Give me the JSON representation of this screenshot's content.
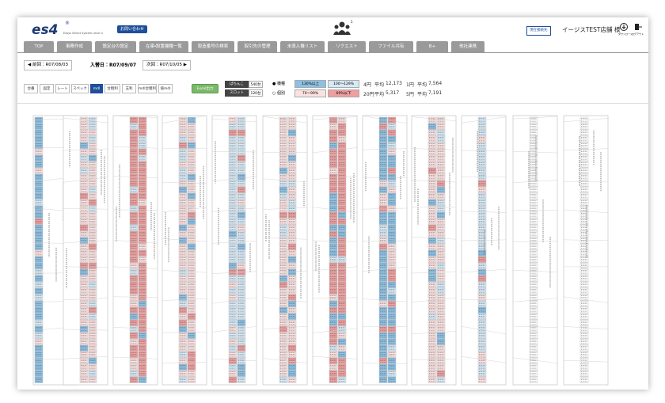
{
  "header": {
    "logo": "es4",
    "logo_mark": "®",
    "logo_sub": "Easys Select System Level 4",
    "contact": "お問い合わせ",
    "badge": "1",
    "current_button": "現在接続先",
    "store": "イージスTEST店舗 様",
    "icon_labels": [
      "ダウンロード",
      "ログアウト"
    ]
  },
  "tabs": [
    "TOP",
    "事務作成",
    "設定台の設定",
    "在庫・設置機種一覧",
    "製造番号の検索",
    "取引先の管理",
    "未導入機リスト",
    "リクエスト",
    "ファイル共有",
    "B+",
    "他社連携"
  ],
  "nav": {
    "prev": "◀ 前回：R07/08/03",
    "current": "入替日：R07/09/07",
    "next": "次回：R07/10/05 ▶"
  },
  "toolbar": {
    "buttons": [
      "台番",
      "固定",
      "レート",
      "スペック",
      "mdl",
      "台粗利",
      "玉利",
      "mdl台粗利",
      "値mdl"
    ],
    "excel": "Excel出力"
  },
  "counts": [
    {
      "label": "ぱちんこ",
      "value": "540台"
    },
    {
      "label": "スロット",
      "value": "120台"
    }
  ],
  "radios": [
    "● 機種",
    "○ 個別"
  ],
  "legend": [
    "130%以上",
    "100～129%",
    "70～99%",
    "69%以下"
  ],
  "stats": [
    {
      "rate": "4円",
      "label": "平均",
      "value": "12,173"
    },
    {
      "rate": "1円",
      "label": "平均",
      "value": "7,564"
    },
    {
      "rate": "20円",
      "label": "平均",
      "value": "5,317"
    },
    {
      "rate": "5円",
      "label": "平均",
      "value": "7,191"
    }
  ]
}
